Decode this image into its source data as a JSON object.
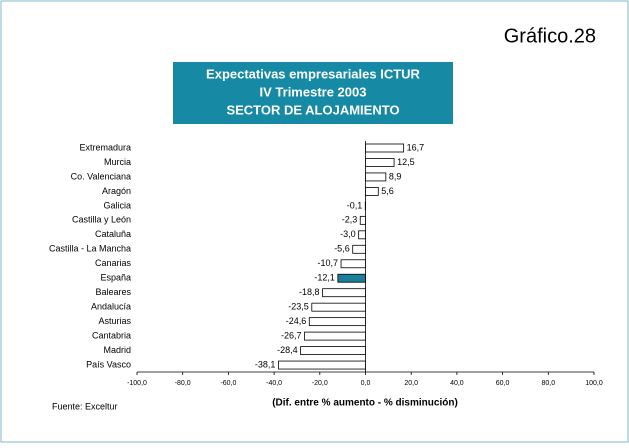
{
  "chart_data": {
    "type": "hbar",
    "header": "Gráfico.28",
    "title": [
      "Expectativas empresariales ICTUR",
      "IV Trimestre 2003",
      "SECTOR DE ALOJAMIENTO"
    ],
    "xlabel": "(Dif. entre % aumento - % disminución)",
    "source": "Fuente: Exceltur",
    "categories": [
      "Extremadura",
      "Murcia",
      "Co. Valenciana",
      "Aragón",
      "Galicia",
      "Castilla y León",
      "Cataluña",
      "Castilla - La Mancha",
      "Canarias",
      "España",
      "Baleares",
      "Andalucía",
      "Asturias",
      "Cantabria",
      "Madrid",
      "País Vasco"
    ],
    "values": [
      16.7,
      12.5,
      8.9,
      5.6,
      -0.1,
      -2.3,
      -3.0,
      -5.6,
      -10.7,
      -12.1,
      -18.8,
      -23.5,
      -24.6,
      -26.7,
      -28.4,
      -38.1
    ],
    "value_labels": [
      "16,7",
      "12,5",
      "8,9",
      "5,6",
      "-0,1",
      "-2,3",
      "-3,0",
      "-5,6",
      "-10,7",
      "-12,1",
      "-18,8",
      "-23,5",
      "-24,6",
      "-26,7",
      "-28,4",
      "-38,1"
    ],
    "colors": [
      "#ffffff",
      "#ffffff",
      "#ffffff",
      "#ffffff",
      "#ffffff",
      "#ffffff",
      "#ffffff",
      "#ffffff",
      "#ffffff",
      "#1a7f9a",
      "#ffffff",
      "#ffffff",
      "#ffffff",
      "#ffffff",
      "#ffffff",
      "#ffffff"
    ],
    "xlim": [
      -100,
      100
    ],
    "xticks": [
      {
        "value": -100,
        "label": "-100,0"
      },
      {
        "value": -80,
        "label": "-80,0"
      },
      {
        "value": -60,
        "label": "-60,0"
      },
      {
        "value": -40,
        "label": "-40,0"
      },
      {
        "value": -20,
        "label": "-20,0"
      },
      {
        "value": 0,
        "label": "0,0"
      },
      {
        "value": 20,
        "label": "20,0"
      },
      {
        "value": 40,
        "label": "40,0"
      },
      {
        "value": 60,
        "label": "60,0"
      },
      {
        "value": 80,
        "label": "80,0"
      },
      {
        "value": 100,
        "label": "100,0"
      }
    ]
  }
}
